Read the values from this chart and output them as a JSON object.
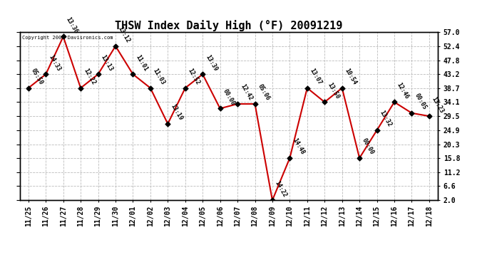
{
  "title": "THSW Index Daily High (°F) 20091219",
  "copyright": "Copyright 2009 Davisronics.com",
  "x_labels": [
    "11/25",
    "11/26",
    "11/27",
    "11/28",
    "11/29",
    "11/30",
    "12/01",
    "12/02",
    "12/03",
    "12/04",
    "12/05",
    "12/06",
    "12/07",
    "12/08",
    "12/09",
    "12/10",
    "12/11",
    "12/12",
    "12/13",
    "12/14",
    "12/15",
    "12/16",
    "12/17",
    "12/18"
  ],
  "y_values": [
    38.7,
    43.2,
    55.5,
    38.7,
    43.2,
    52.4,
    43.2,
    38.7,
    27.0,
    38.7,
    43.2,
    32.0,
    33.5,
    33.5,
    2.0,
    15.8,
    38.7,
    34.1,
    38.7,
    15.8,
    24.9,
    34.1,
    30.5,
    29.5
  ],
  "point_labels": [
    "05:50",
    "14:33",
    "13:36",
    "12:22",
    "13:13",
    "13:12",
    "11:01",
    "11:03",
    "13:19",
    "12:52",
    "13:39",
    "00:00",
    "12:42",
    "05:06",
    "14:22",
    "14:48",
    "13:07",
    "13:50",
    "10:54",
    "00:00",
    "13:32",
    "12:46",
    "00:05",
    "13:23"
  ],
  "line_color": "#cc0000",
  "marker_color": "#000000",
  "background_color": "#ffffff",
  "grid_color": "#bbbbbb",
  "y_ticks": [
    2.0,
    6.6,
    11.2,
    15.8,
    20.3,
    24.9,
    29.5,
    34.1,
    38.7,
    43.2,
    47.8,
    52.4,
    57.0
  ],
  "y_min": 2.0,
  "y_max": 57.0,
  "title_fontsize": 11,
  "label_fontsize": 6,
  "tick_fontsize": 7
}
